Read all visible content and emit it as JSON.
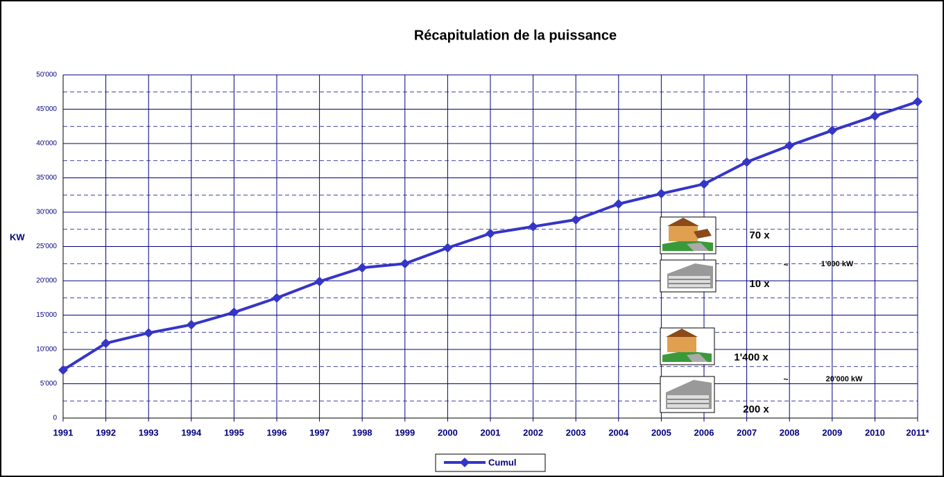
{
  "chart_data": {
    "type": "line",
    "title": "Récapitulation de la puissance",
    "y_label": "KW",
    "categories": [
      "1991",
      "1992",
      "1993",
      "1994",
      "1995",
      "1996",
      "1997",
      "1998",
      "1999",
      "2000",
      "2001",
      "2002",
      "2003",
      "2004",
      "2005",
      "2006",
      "2007",
      "2008",
      "2009",
      "2010",
      "2011*"
    ],
    "series": [
      {
        "name": "Cumul",
        "color": "#3535c8",
        "values": [
          7000,
          10900,
          12400,
          13600,
          15400,
          17500,
          19900,
          21900,
          22500,
          24800,
          26900,
          27900,
          28900,
          31200,
          32700,
          34100,
          37300,
          39700,
          41900,
          44000,
          46100
        ]
      }
    ],
    "ylim": [
      0,
      50000
    ],
    "yticks": [
      0,
      {
        "value": 5000,
        "label": "5'000"
      },
      {
        "value": 10000,
        "label": "10'000"
      },
      {
        "value": 15000,
        "label": "15'000"
      },
      {
        "value": 20000,
        "label": "20'000"
      },
      {
        "value": 25000,
        "label": "25'000"
      },
      {
        "value": 30000,
        "label": "30'000"
      },
      {
        "value": 35000,
        "label": "35'000"
      },
      {
        "value": 40000,
        "label": "40'000"
      },
      {
        "value": 45000,
        "label": "45'000"
      },
      {
        "value": 50000,
        "label": "50'000"
      }
    ],
    "yminorticks": [
      2500,
      7500,
      12500,
      17500,
      22500,
      27500,
      32500,
      37500,
      42500,
      47500
    ],
    "grid": true,
    "legend": "bottom",
    "annotations": [
      "70 x",
      "10 x",
      "1'400 x",
      "200 x",
      "~",
      "1'000 kW",
      "~",
      "20'000 kW"
    ]
  }
}
